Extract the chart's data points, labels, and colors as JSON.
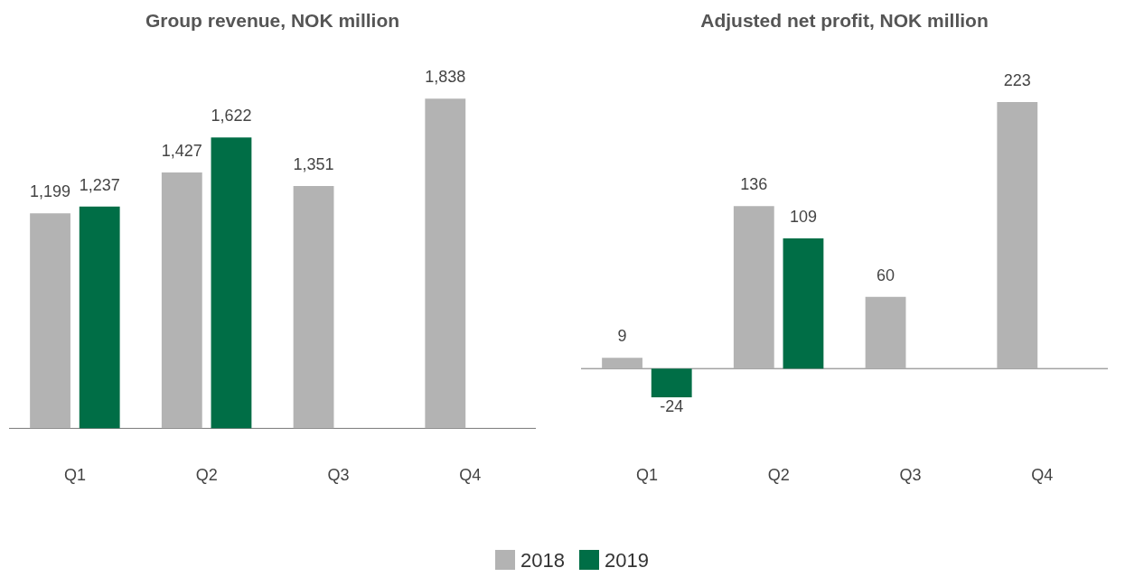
{
  "chart_data": [
    {
      "type": "bar",
      "title": "Group revenue, NOK million",
      "categories": [
        "Q1",
        "Q2",
        "Q3",
        "Q4"
      ],
      "series": [
        {
          "name": "2018",
          "color": "#b3b3b3",
          "values": [
            1199,
            1427,
            1351,
            1838
          ],
          "value_labels": [
            "1,199",
            "1,427",
            "1,351",
            "1,838"
          ]
        },
        {
          "name": "2019",
          "color": "#006e46",
          "values": [
            1237,
            1622,
            null,
            null
          ],
          "value_labels": [
            "1,237",
            "1,622",
            null,
            null
          ]
        }
      ],
      "grid": false,
      "legend": "bottom"
    },
    {
      "type": "bar",
      "title": "Adjusted net profit, NOK million",
      "categories": [
        "Q1",
        "Q2",
        "Q3",
        "Q4"
      ],
      "series": [
        {
          "color": "#b3b3b3",
          "values": [
            9,
            136,
            60,
            223
          ]
        },
        {
          "color": "#006e46",
          "values": [
            -24,
            109,
            null,
            null
          ]
        }
      ],
      "data_labels": true,
      "grid": false
    }
  ]
}
